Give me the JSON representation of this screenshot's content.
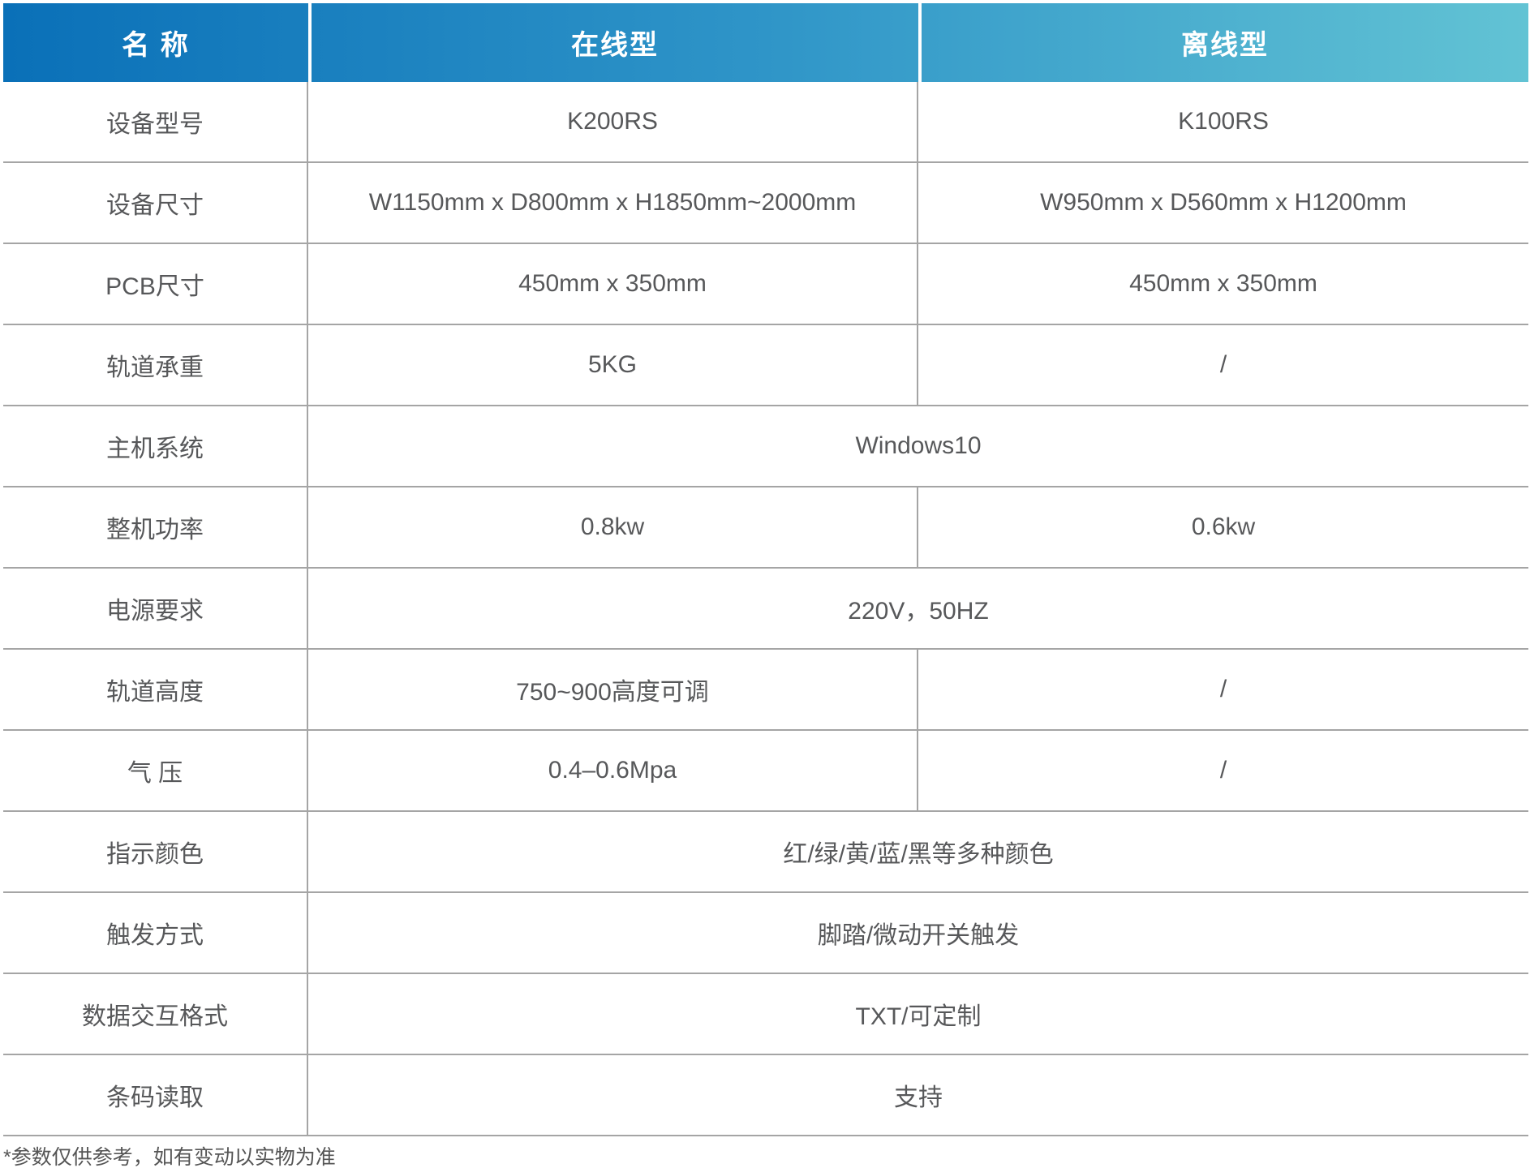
{
  "colors": {
    "header_gradient_start": "#0a70b8",
    "header_gradient_mid": "#2f95c8",
    "header_gradient_end": "#62c3d4",
    "header_text": "#ffffff",
    "body_text": "#57585a",
    "grid_line": "#a5a5a5"
  },
  "table": {
    "header": {
      "name": "名 称",
      "online": "在线型",
      "offline": "离线型"
    },
    "rows": [
      {
        "label": "设备型号",
        "online": "K200RS",
        "offline": "K100RS"
      },
      {
        "label": "设备尺寸",
        "online": "W1150mm x D800mm x H1850mm~2000mm",
        "offline": "W950mm x D560mm x H1200mm"
      },
      {
        "label": "PCB尺寸",
        "online": "450mm x 350mm",
        "offline": "450mm x 350mm"
      },
      {
        "label": "轨道承重",
        "online": "5KG",
        "offline": "/"
      },
      {
        "label": "主机系统",
        "merged": "Windows10"
      },
      {
        "label": "整机功率",
        "online": "0.8kw",
        "offline": "0.6kw"
      },
      {
        "label": "电源要求",
        "merged": "220V，50HZ"
      },
      {
        "label": "轨道高度",
        "online": "750~900高度可调",
        "offline": "/"
      },
      {
        "label": "气 压",
        "online": "0.4–0.6Mpa",
        "offline": "/"
      },
      {
        "label": "指示颜色",
        "merged": "红/绿/黄/蓝/黑等多种颜色"
      },
      {
        "label": "触发方式",
        "merged": "脚踏/微动开关触发"
      },
      {
        "label": "数据交互格式",
        "merged": "TXT/可定制"
      },
      {
        "label": "条码读取",
        "merged": "支持"
      }
    ]
  },
  "footnote": "*参数仅供参考，如有变动以实物为准"
}
